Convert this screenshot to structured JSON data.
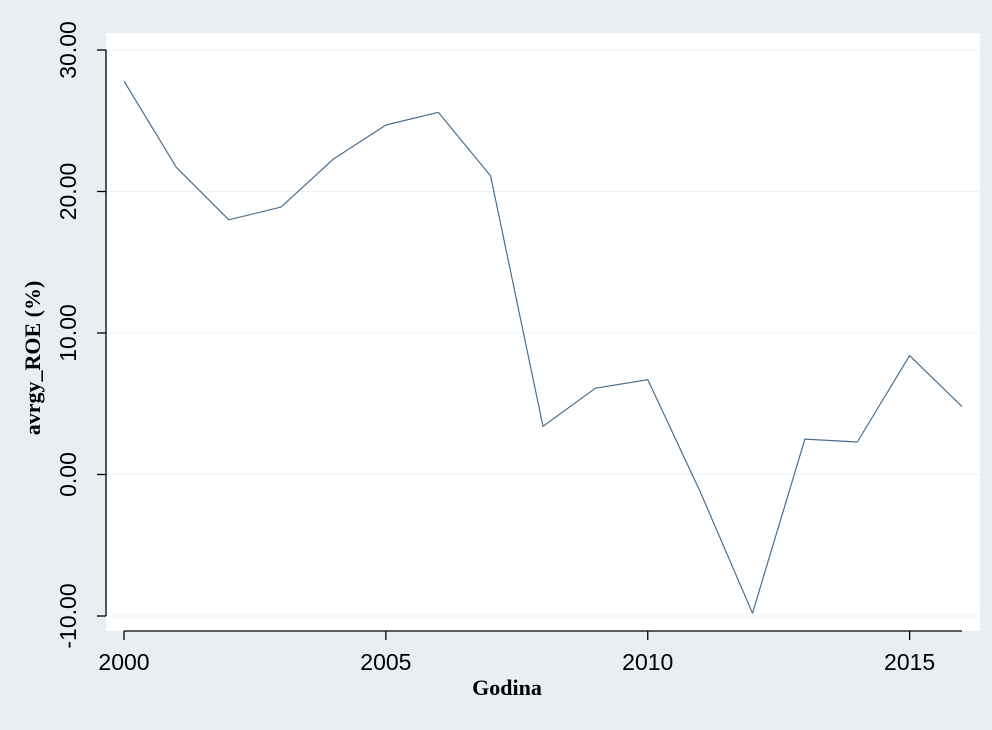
{
  "chart_data": {
    "type": "line",
    "title": "",
    "xlabel": "Godina",
    "ylabel": "avrgy_ROE (%)",
    "xlim": [
      2000,
      2016
    ],
    "ylim": [
      -10,
      30
    ],
    "x_ticks": [
      2000,
      2005,
      2010,
      2015
    ],
    "x_tick_labels": [
      "2000",
      "2005",
      "2010",
      "2015"
    ],
    "y_ticks": [
      -10,
      0,
      10,
      20,
      30
    ],
    "y_tick_labels": [
      "-10.00",
      "0.00",
      "10.00",
      "20.00",
      "30.00"
    ],
    "grid": "horizontal",
    "legend": "none",
    "series": [
      {
        "x": [
          2000,
          2001,
          2002,
          2003,
          2004,
          2005,
          2006,
          2007,
          2008,
          2009,
          2010,
          2011,
          2012,
          2013,
          2014,
          2015,
          2016
        ],
        "values": [
          27.8,
          21.7,
          18.0,
          18.9,
          22.3,
          24.7,
          25.6,
          21.1,
          3.4,
          6.1,
          6.7,
          -1.2,
          -9.8,
          2.5,
          2.3,
          8.4,
          4.8
        ]
      }
    ]
  },
  "colors": {
    "background": "#e9eef2",
    "plot_background": "#ffffff",
    "grid": "#eef2f5",
    "line": "#4a6f8f",
    "axis": "#000000"
  }
}
